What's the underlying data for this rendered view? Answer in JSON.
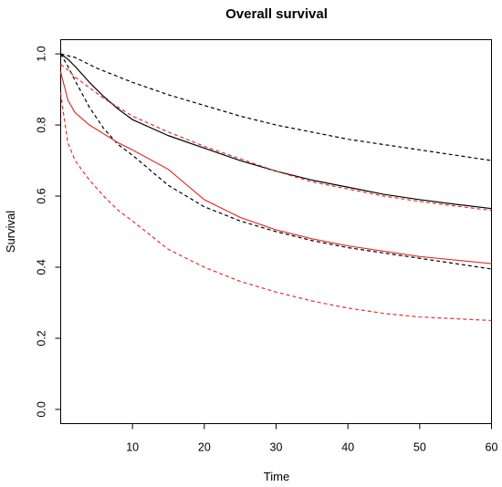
{
  "chart_data": {
    "type": "line",
    "title": "Overall survival",
    "xlabel": "Time",
    "ylabel": "Survival",
    "xlim": [
      0,
      60
    ],
    "ylim": [
      -0.04,
      1.04
    ],
    "xticks": [
      10,
      20,
      30,
      40,
      50,
      60
    ],
    "yticks": [
      0.0,
      0.2,
      0.4,
      0.6,
      0.8,
      1.0
    ],
    "ytick_labels": [
      "0.0",
      "0.2",
      "0.4",
      "0.6",
      "0.8",
      "1.0"
    ],
    "legend": "none",
    "grid": false,
    "series": [
      {
        "color": "#000000",
        "style": "solid",
        "x": [
          0,
          1,
          2,
          4,
          6,
          8,
          10,
          15,
          20,
          25,
          30,
          35,
          40,
          45,
          50,
          55,
          60
        ],
        "y": [
          1.0,
          0.985,
          0.965,
          0.92,
          0.88,
          0.845,
          0.815,
          0.77,
          0.735,
          0.7,
          0.67,
          0.645,
          0.625,
          0.605,
          0.59,
          0.577,
          0.565
        ]
      },
      {
        "color": "#000000",
        "style": "dashed",
        "x": [
          0,
          2,
          5,
          10,
          15,
          20,
          25,
          30,
          35,
          40,
          45,
          50,
          55,
          60
        ],
        "y": [
          1.0,
          0.99,
          0.96,
          0.92,
          0.885,
          0.855,
          0.825,
          0.8,
          0.78,
          0.76,
          0.745,
          0.73,
          0.715,
          0.7
        ]
      },
      {
        "color": "#000000",
        "style": "dashed",
        "x": [
          0,
          1,
          2,
          4,
          6,
          8,
          10,
          15,
          20,
          25,
          30,
          35,
          40,
          45,
          50,
          55,
          60
        ],
        "y": [
          1.0,
          0.965,
          0.925,
          0.85,
          0.79,
          0.745,
          0.715,
          0.63,
          0.57,
          0.53,
          0.5,
          0.475,
          0.455,
          0.44,
          0.425,
          0.41,
          0.395
        ]
      },
      {
        "color": "#e03030",
        "style": "solid",
        "x": [
          0,
          0.3,
          0.7,
          1,
          2,
          4,
          6,
          8,
          10,
          15,
          20,
          25,
          30,
          35,
          40,
          45,
          50,
          55,
          60
        ],
        "y": [
          0.95,
          0.925,
          0.895,
          0.87,
          0.835,
          0.8,
          0.775,
          0.75,
          0.73,
          0.675,
          0.59,
          0.54,
          0.505,
          0.48,
          0.46,
          0.445,
          0.43,
          0.42,
          0.41
        ]
      },
      {
        "color": "#e03030",
        "style": "dashed",
        "x": [
          0,
          1,
          2,
          4,
          6,
          8,
          10,
          15,
          20,
          25,
          30,
          35,
          40,
          45,
          50,
          55,
          60
        ],
        "y": [
          0.97,
          0.955,
          0.935,
          0.905,
          0.875,
          0.85,
          0.825,
          0.78,
          0.74,
          0.705,
          0.67,
          0.64,
          0.62,
          0.6,
          0.585,
          0.572,
          0.56
        ]
      },
      {
        "color": "#e03030",
        "style": "dashed",
        "x": [
          0,
          0.3,
          0.7,
          1,
          2,
          4,
          6,
          8,
          10,
          15,
          20,
          25,
          30,
          35,
          40,
          45,
          50,
          55,
          60
        ],
        "y": [
          0.89,
          0.845,
          0.79,
          0.75,
          0.7,
          0.645,
          0.6,
          0.56,
          0.53,
          0.45,
          0.4,
          0.36,
          0.33,
          0.305,
          0.285,
          0.27,
          0.26,
          0.255,
          0.25
        ]
      }
    ]
  }
}
